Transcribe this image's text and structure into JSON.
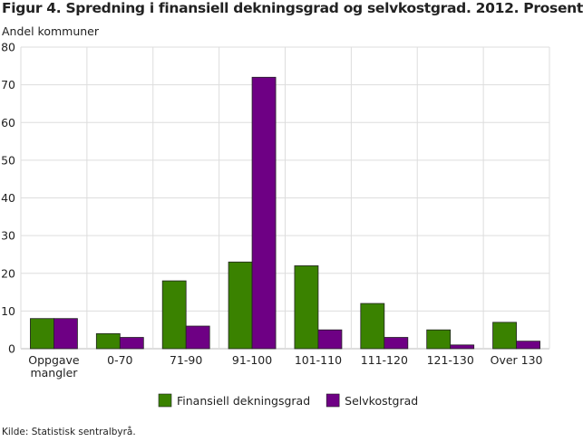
{
  "chart_data": {
    "type": "bar",
    "title": "Figur 4. Spredning i finansiell dekningsgrad og selvkostgrad. 2012. Prosent",
    "ylabel": "Andel kommuner",
    "xlabel": "",
    "ylim": [
      0,
      80
    ],
    "yticks": [
      0,
      10,
      20,
      30,
      40,
      50,
      60,
      70,
      80
    ],
    "grid": true,
    "legend_position": "bottom",
    "categories": [
      [
        "Oppgave",
        "mangler"
      ],
      [
        "0-70"
      ],
      [
        "71-90"
      ],
      [
        "91-100"
      ],
      [
        "101-110"
      ],
      [
        "111-120"
      ],
      [
        "121-130"
      ],
      [
        "Over 130"
      ]
    ],
    "series": [
      {
        "name": "Finansiell dekningsgrad",
        "color": "#3a8200",
        "values": [
          8,
          4,
          18,
          23,
          22,
          12,
          5,
          7
        ]
      },
      {
        "name": "Selvkostgrad",
        "color": "#6e0084",
        "values": [
          8,
          3,
          6,
          72,
          5,
          3,
          1,
          2
        ]
      }
    ],
    "source": "Kilde: Statistisk sentralbyrå."
  }
}
